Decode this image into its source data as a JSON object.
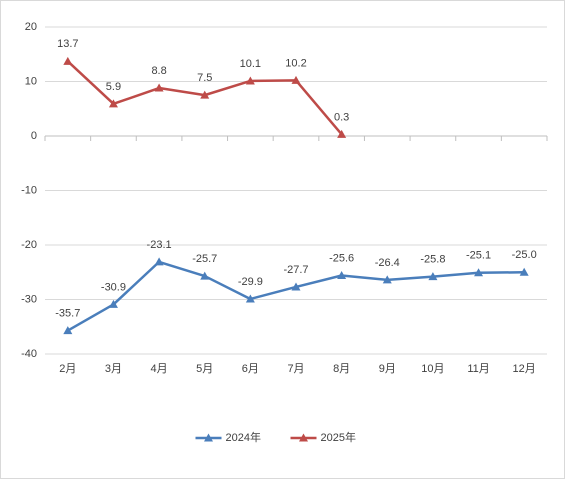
{
  "chart_data": {
    "type": "line",
    "categories": [
      "2月",
      "3月",
      "4月",
      "5月",
      "6月",
      "7月",
      "8月",
      "9月",
      "10月",
      "11月",
      "12月"
    ],
    "series": [
      {
        "name": "2024年",
        "color": "#4a7ebb",
        "values": [
          -35.7,
          -30.9,
          -23.1,
          -25.7,
          -29.9,
          -27.7,
          -25.6,
          -26.4,
          -25.8,
          -25.1,
          -25
        ],
        "value_labels": [
          "-35.7",
          "-30.9",
          "-23.1",
          "-25.7",
          "-29.9",
          "-27.7",
          "-25.6",
          "-26.4",
          "-25.8",
          "-25.1",
          "-25.0"
        ]
      },
      {
        "name": "2025年",
        "color": "#be4b48",
        "values": [
          13.7,
          5.9,
          8.8,
          7.5,
          10.1,
          10.2,
          0.3,
          null,
          null,
          null,
          null
        ],
        "value_labels": [
          "13.7",
          "5.9",
          "8.8",
          "7.5",
          "10.1",
          "10.2",
          "0.3",
          null,
          null,
          null,
          null
        ]
      }
    ],
    "ylim": [
      -40,
      20
    ],
    "yticks": [
      -40,
      -30,
      -20,
      -10,
      0,
      10,
      20
    ],
    "grid": true,
    "legend": "bottom"
  }
}
